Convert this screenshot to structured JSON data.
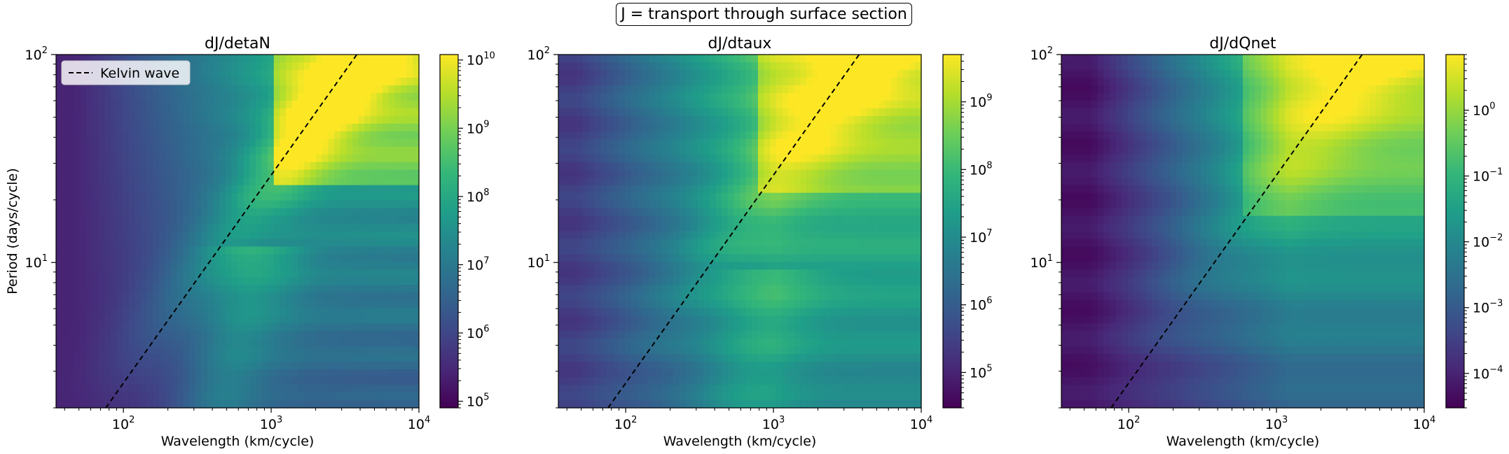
{
  "suptitle": "J = transport through surface section",
  "colors": {
    "axis": "#000000",
    "dashed_line": "#000000",
    "legend_bg": "#ffffff"
  },
  "colormap": [
    "#440154",
    "#482878",
    "#3e4a89",
    "#31688e",
    "#26828e",
    "#1f9e89",
    "#35b779",
    "#6ece58",
    "#b5de2b",
    "#fde725"
  ],
  "chart_data": [
    {
      "type": "heatmap",
      "title": "dJ/detaN",
      "xlabel": "Wavelength (km/cycle)",
      "ylabel": "Period (days/cycle)",
      "xscale": "log",
      "yscale": "log",
      "xlim": [
        35,
        10000
      ],
      "ylim": [
        2,
        100
      ],
      "x_ticks": [
        {
          "value": 100,
          "base": "10",
          "exp": "2"
        },
        {
          "value": 1000,
          "base": "10",
          "exp": "3"
        },
        {
          "value": 10000,
          "base": "10",
          "exp": "4"
        }
      ],
      "y_ticks": [
        {
          "value": 10,
          "base": "10",
          "exp": "1"
        },
        {
          "value": 100,
          "base": "10",
          "exp": "2"
        }
      ],
      "colorbar": {
        "scale": "log",
        "range": [
          80000,
          12000000000
        ],
        "ticks": [
          {
            "value": 100000.0,
            "mant": "",
            "base": "10",
            "exp": "5"
          },
          {
            "value": 1000000.0,
            "mant": "",
            "base": "10",
            "exp": "6"
          },
          {
            "value": 10000000.0,
            "mant": "",
            "base": "10",
            "exp": "7"
          },
          {
            "value": 100000000.0,
            "mant": "",
            "base": "10",
            "exp": "8"
          },
          {
            "value": 1000000000.0,
            "mant": "",
            "base": "10",
            "exp": "9"
          },
          {
            "value": 10000000000.0,
            "mant": "",
            "base": "10",
            "exp": "10"
          }
        ]
      },
      "kelvin_line": {
        "points": [
          [
            76,
            2
          ],
          [
            3800,
            100
          ]
        ]
      },
      "legend": {
        "label": "Kelvin wave",
        "placement": "upper-left"
      },
      "field": {
        "min": 80000,
        "max": 12000000000,
        "style": "ssh"
      }
    },
    {
      "type": "heatmap",
      "title": "dJ/dtaux",
      "xlabel": "Wavelength (km/cycle)",
      "ylabel": "",
      "xscale": "log",
      "yscale": "log",
      "xlim": [
        35,
        10000
      ],
      "ylim": [
        2,
        100
      ],
      "x_ticks": [
        {
          "value": 100,
          "base": "10",
          "exp": "2"
        },
        {
          "value": 1000,
          "base": "10",
          "exp": "3"
        },
        {
          "value": 10000,
          "base": "10",
          "exp": "4"
        }
      ],
      "y_ticks": [
        {
          "value": 10,
          "base": "10",
          "exp": "1"
        },
        {
          "value": 100,
          "base": "10",
          "exp": "2"
        }
      ],
      "colorbar": {
        "scale": "log",
        "range": [
          30000,
          5000000000
        ],
        "ticks": [
          {
            "value": 100000.0,
            "mant": "",
            "base": "10",
            "exp": "5"
          },
          {
            "value": 1000000.0,
            "mant": "",
            "base": "10",
            "exp": "6"
          },
          {
            "value": 10000000.0,
            "mant": "",
            "base": "10",
            "exp": "7"
          },
          {
            "value": 100000000.0,
            "mant": "",
            "base": "10",
            "exp": "8"
          },
          {
            "value": 1000000000.0,
            "mant": "",
            "base": "10",
            "exp": "9"
          }
        ]
      },
      "kelvin_line": {
        "points": [
          [
            76,
            2
          ],
          [
            3800,
            100
          ]
        ]
      },
      "field": {
        "min": 30000,
        "max": 5000000000,
        "style": "wind"
      }
    },
    {
      "type": "heatmap",
      "title": "dJ/dQnet",
      "xlabel": "Wavelength (km/cycle)",
      "ylabel": "",
      "xscale": "log",
      "yscale": "log",
      "xlim": [
        35,
        10000
      ],
      "ylim": [
        2,
        100
      ],
      "x_ticks": [
        {
          "value": 100,
          "base": "10",
          "exp": "2"
        },
        {
          "value": 1000,
          "base": "10",
          "exp": "3"
        },
        {
          "value": 10000,
          "base": "10",
          "exp": "4"
        }
      ],
      "y_ticks": [
        {
          "value": 10,
          "base": "10",
          "exp": "1"
        },
        {
          "value": 100,
          "base": "10",
          "exp": "2"
        }
      ],
      "colorbar": {
        "scale": "log",
        "range": [
          3e-05,
          7
        ],
        "ticks": [
          {
            "value": 0.0001,
            "mant": "",
            "base": "10",
            "exp": "−4"
          },
          {
            "value": 0.001,
            "mant": "",
            "base": "10",
            "exp": "−3"
          },
          {
            "value": 0.01,
            "mant": "",
            "base": "10",
            "exp": "−2"
          },
          {
            "value": 0.1,
            "mant": "",
            "base": "10",
            "exp": "−1"
          },
          {
            "value": 1,
            "mant": "",
            "base": "10",
            "exp": "0"
          }
        ]
      },
      "kelvin_line": {
        "points": [
          [
            76,
            2
          ],
          [
            3800,
            100
          ]
        ]
      },
      "field": {
        "min": 3e-05,
        "max": 7,
        "style": "heat"
      }
    }
  ]
}
